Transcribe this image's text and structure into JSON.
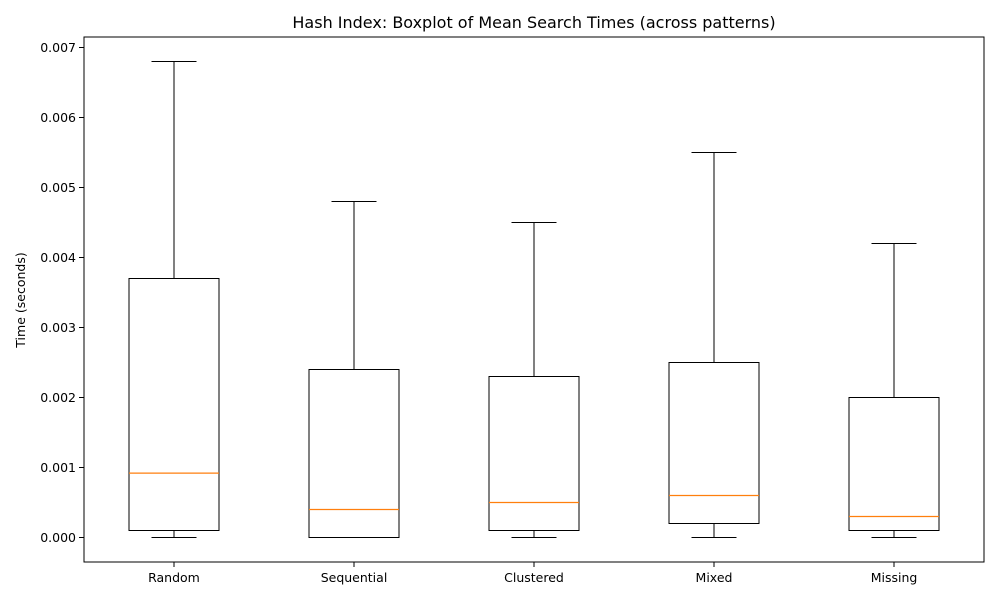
{
  "chart_data": {
    "type": "boxplot",
    "title": "Hash Index: Boxplot of Mean Search Times (across patterns)",
    "xlabel": "",
    "ylabel": "Time (seconds)",
    "ylim": [
      -0.00035,
      0.00715
    ],
    "yticks": [
      0.0,
      0.001,
      0.002,
      0.003,
      0.004,
      0.005,
      0.006,
      0.007
    ],
    "ytick_labels": [
      "0.000",
      "0.001",
      "0.002",
      "0.003",
      "0.004",
      "0.005",
      "0.006",
      "0.007"
    ],
    "categories": [
      "Random",
      "Sequential",
      "Clustered",
      "Mixed",
      "Missing"
    ],
    "boxes": [
      {
        "category": "Random",
        "whislo": 0.0,
        "q1": 0.0001,
        "med": 0.00092,
        "q3": 0.0037,
        "whishi": 0.0068
      },
      {
        "category": "Sequential",
        "whislo": 0.0,
        "q1": 0.0,
        "med": 0.0004,
        "q3": 0.0024,
        "whishi": 0.0048
      },
      {
        "category": "Clustered",
        "whislo": 0.0,
        "q1": 0.0001,
        "med": 0.0005,
        "q3": 0.0023,
        "whishi": 0.0045
      },
      {
        "category": "Mixed",
        "whislo": 0.0,
        "q1": 0.0002,
        "med": 0.0006,
        "q3": 0.0025,
        "whishi": 0.0055
      },
      {
        "category": "Missing",
        "whislo": 0.0,
        "q1": 0.0001,
        "med": 0.0003,
        "q3": 0.002,
        "whishi": 0.0042
      }
    ],
    "grid": false,
    "colors": {
      "box": "#000000",
      "median": "#ff7f0e",
      "background": "#ffffff"
    }
  }
}
